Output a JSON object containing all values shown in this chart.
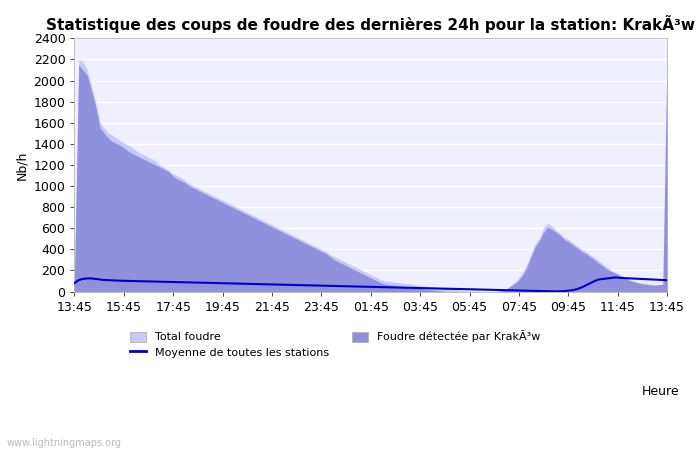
{
  "title": "Statistique des coups de foudre des dernières 24h pour la station: KrakÃ³w",
  "xlabel": "Heure",
  "ylabel": "Nb/h",
  "watermark": "www.lightningmaps.org",
  "ylim": [
    0,
    2400
  ],
  "x_labels": [
    "13:45",
    "15:45",
    "17:45",
    "19:45",
    "21:45",
    "23:45",
    "01:45",
    "03:45",
    "05:45",
    "07:45",
    "09:45",
    "11:45",
    "13:45"
  ],
  "total_foudre_color": "#c8c8ff",
  "detected_color": "#9090dd",
  "line_color": "#0000cc",
  "background_color": "#efefff",
  "legend_total": "Total foudre",
  "legend_detected": "Foudre détectée par KrakÃ³w",
  "legend_moyenne": "Moyenne de toutes les stations",
  "title_fontsize": 11,
  "axis_fontsize": 9,
  "total_values": [
    150,
    2200,
    2180,
    2100,
    1950,
    1800,
    1600,
    1550,
    1500,
    1480,
    1450,
    1420,
    1400,
    1380,
    1350,
    1320,
    1300,
    1280,
    1260,
    1240,
    1200,
    1180,
    1150,
    1120,
    1100,
    1080,
    1050,
    1020,
    1000,
    980,
    960,
    940,
    920,
    900,
    880,
    860,
    840,
    820,
    800,
    780,
    760,
    740,
    720,
    700,
    680,
    660,
    640,
    620,
    600,
    580,
    560,
    540,
    520,
    500,
    480,
    460,
    440,
    420,
    400,
    380,
    350,
    330,
    310,
    290,
    270,
    250,
    230,
    210,
    190,
    170,
    150,
    130,
    110,
    100,
    95,
    90,
    85,
    80,
    75,
    70,
    65,
    60,
    55,
    50,
    45,
    40,
    35,
    30,
    25,
    20,
    15,
    10,
    8,
    6,
    4,
    2,
    0,
    0,
    0,
    0,
    10,
    20,
    50,
    80,
    120,
    180,
    250,
    350,
    450,
    500,
    600,
    650,
    620,
    580,
    550,
    510,
    490,
    460,
    430,
    400,
    380,
    350,
    320,
    290,
    260,
    230,
    200,
    180,
    160,
    140,
    120,
    100,
    90,
    80,
    75,
    70,
    65,
    60,
    65,
    70,
    2300
  ],
  "detected_values": [
    100,
    2150,
    2100,
    2050,
    1900,
    1750,
    1550,
    1500,
    1450,
    1420,
    1400,
    1380,
    1350,
    1320,
    1300,
    1280,
    1260,
    1240,
    1220,
    1200,
    1180,
    1160,
    1140,
    1100,
    1070,
    1050,
    1030,
    1000,
    980,
    960,
    940,
    920,
    900,
    880,
    860,
    840,
    820,
    800,
    780,
    760,
    740,
    720,
    700,
    680,
    660,
    640,
    620,
    600,
    580,
    560,
    540,
    520,
    500,
    480,
    460,
    440,
    420,
    400,
    380,
    360,
    330,
    300,
    280,
    260,
    240,
    220,
    200,
    180,
    160,
    140,
    120,
    100,
    80,
    70,
    65,
    60,
    55,
    50,
    45,
    40,
    35,
    30,
    25,
    20,
    15,
    10,
    5,
    2,
    0,
    0,
    0,
    0,
    0,
    0,
    0,
    0,
    0,
    0,
    0,
    0,
    5,
    15,
    40,
    70,
    100,
    150,
    220,
    320,
    420,
    480,
    560,
    610,
    590,
    560,
    530,
    490,
    470,
    440,
    410,
    380,
    360,
    330,
    300,
    270,
    240,
    210,
    190,
    170,
    150,
    130,
    110,
    95,
    85,
    75,
    70,
    65,
    60,
    65,
    70,
    2250
  ],
  "moyenne_values": [
    80,
    110,
    120,
    125,
    125,
    120,
    115,
    110,
    108,
    106,
    105,
    103,
    102,
    100,
    99,
    98,
    97,
    96,
    95,
    94,
    93,
    92,
    91,
    90,
    89,
    88,
    87,
    86,
    85,
    84,
    83,
    82,
    81,
    80,
    79,
    78,
    77,
    76,
    75,
    74,
    73,
    72,
    71,
    70,
    69,
    68,
    67,
    66,
    65,
    64,
    63,
    62,
    61,
    60,
    59,
    58,
    57,
    56,
    55,
    54,
    53,
    52,
    51,
    50,
    49,
    48,
    47,
    46,
    45,
    44,
    43,
    42,
    41,
    40,
    39,
    38,
    37,
    36,
    35,
    34,
    33,
    32,
    31,
    30,
    29,
    28,
    27,
    26,
    25,
    24,
    23,
    22,
    21,
    20,
    19,
    18,
    17,
    16,
    15,
    14,
    13,
    12,
    11,
    10,
    9,
    8,
    7,
    6,
    5,
    4,
    3,
    2,
    1,
    2,
    3,
    5,
    10,
    15,
    25,
    40,
    60,
    80,
    100,
    115,
    120,
    125,
    130,
    135,
    130,
    128,
    126,
    124,
    122,
    120,
    118,
    116,
    114,
    112,
    110,
    108,
    106,
    105,
    110,
    120,
    180
  ]
}
